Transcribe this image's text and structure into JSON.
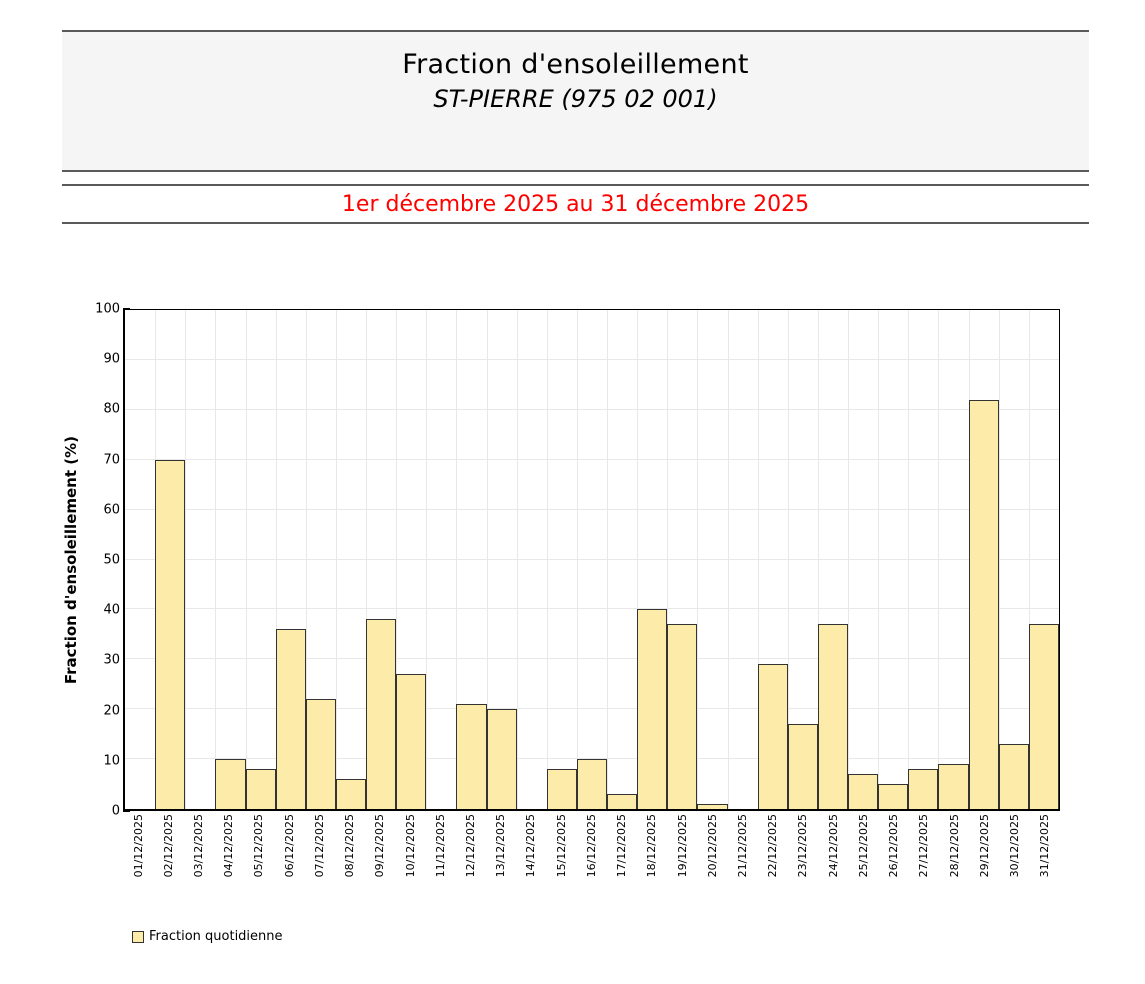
{
  "header": {
    "title": "Fraction d'ensoleillement",
    "subtitle": "ST-PIERRE (975 02 001)",
    "period": "1er décembre 2025 au 31 décembre 2025"
  },
  "legend": {
    "label": "Fraction quotidienne"
  },
  "colors": {
    "bar_fill": "#FDEBAA",
    "bar_border": "#333333",
    "band_bg": "#F5F5F5",
    "band_line": "#5A5A5A",
    "period_text": "#FF0000",
    "gridline": "#E8E8E8",
    "axis": "#000000"
  },
  "chart_data": {
    "type": "bar",
    "title": "Fraction d'ensoleillement",
    "subtitle": "ST-PIERRE (975 02 001)",
    "xlabel": "",
    "ylabel": "Fraction d'ensoleillement (%)",
    "ylim": [
      0,
      100
    ],
    "ytick_step": 10,
    "grid": true,
    "legend_position": "bottom-left",
    "categories": [
      "01/12/2025",
      "02/12/2025",
      "03/12/2025",
      "04/12/2025",
      "05/12/2025",
      "06/12/2025",
      "07/12/2025",
      "08/12/2025",
      "09/12/2025",
      "10/12/2025",
      "11/12/2025",
      "12/12/2025",
      "13/12/2025",
      "14/12/2025",
      "15/12/2025",
      "16/12/2025",
      "17/12/2025",
      "18/12/2025",
      "19/12/2025",
      "20/12/2025",
      "21/12/2025",
      "22/12/2025",
      "23/12/2025",
      "24/12/2025",
      "25/12/2025",
      "26/12/2025",
      "27/12/2025",
      "28/12/2025",
      "29/12/2025",
      "30/12/2025",
      "31/12/2025"
    ],
    "series": [
      {
        "name": "Fraction quotidienne",
        "values": [
          0,
          70,
          0,
          10,
          8,
          36,
          22,
          6,
          38,
          27,
          0,
          21,
          20,
          0,
          8,
          10,
          3,
          40,
          37,
          1,
          0,
          29,
          17,
          37,
          7,
          5,
          8,
          9,
          82,
          13,
          37
        ]
      }
    ]
  }
}
